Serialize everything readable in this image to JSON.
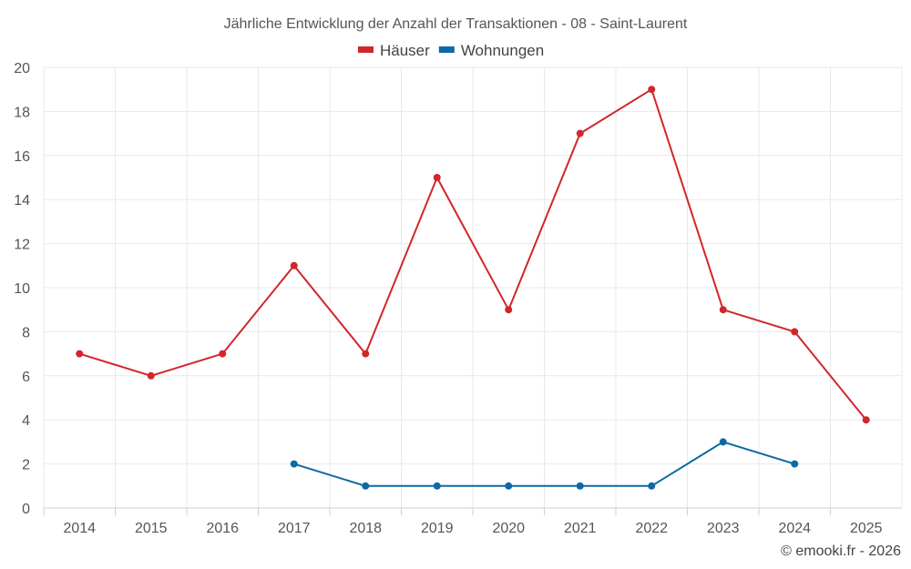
{
  "chart_data": {
    "type": "line",
    "title": "Jährliche Entwicklung der Anzahl der Transaktionen - 08 - Saint-Laurent",
    "categories": [
      "2014",
      "2015",
      "2016",
      "2017",
      "2018",
      "2019",
      "2020",
      "2021",
      "2022",
      "2023",
      "2024",
      "2025"
    ],
    "ylim": [
      0,
      20
    ],
    "yticks": [
      0,
      2,
      4,
      6,
      8,
      10,
      12,
      14,
      16,
      18,
      20
    ],
    "grid": true,
    "legend_position": "top-center",
    "series": [
      {
        "name": "Häuser",
        "color": "#d1262b",
        "values": [
          7,
          6,
          7,
          11,
          7,
          15,
          9,
          17,
          19,
          9,
          8,
          4
        ]
      },
      {
        "name": "Wohnungen",
        "color": "#0c6aa6",
        "values": [
          null,
          null,
          null,
          2,
          1,
          1,
          1,
          1,
          1,
          3,
          2,
          null
        ]
      }
    ],
    "credit": "© emooki.fr - 2026"
  }
}
